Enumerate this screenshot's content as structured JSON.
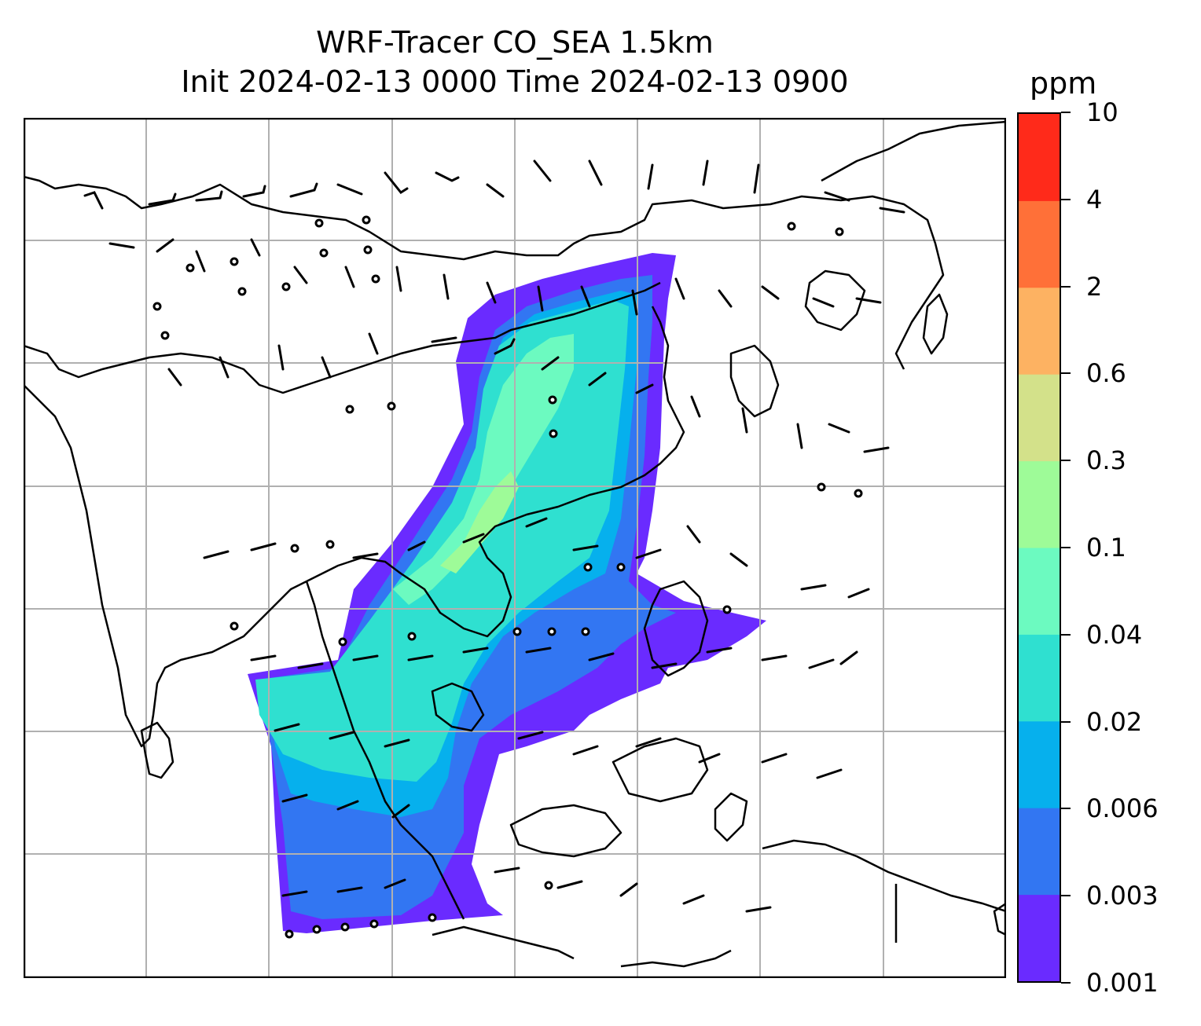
{
  "title": {
    "line1": "WRF-Tracer CO_SEA 1.5km",
    "line2": "Init 2024-02-13 0000 Time 2024-02-13 0900"
  },
  "colorbar": {
    "unit": "ppm",
    "levels": [
      "0.001",
      "0.003",
      "0.006",
      "0.02",
      "0.04",
      "0.1",
      "0.3",
      "0.6",
      "2",
      "4",
      "10"
    ],
    "colors": [
      "#6a2bff",
      "#3276f2",
      "#06b0ed",
      "#2fe0d0",
      "#6cfac0",
      "#9efb98",
      "#d3e18a",
      "#fdb262",
      "#ff7038",
      "#ff2a1a"
    ]
  },
  "map": {
    "variable": "CO tracer",
    "overlay": "wind barbs",
    "gridlines": true,
    "coastlines": true
  }
}
